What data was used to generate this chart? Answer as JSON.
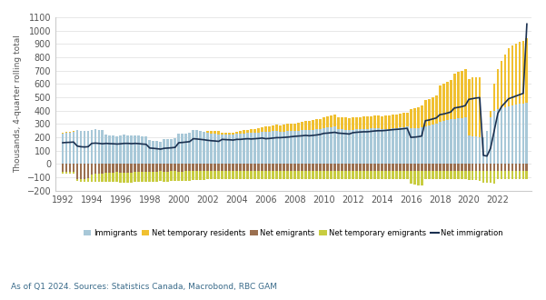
{
  "ylabel": "Thousands, 4-quarter rolling total",
  "ylim": [
    -200,
    1100
  ],
  "yticks": [
    -200,
    -100,
    0,
    100,
    200,
    300,
    400,
    500,
    600,
    700,
    800,
    900,
    1000,
    1100
  ],
  "source_text": "As of Q1 2024. Sources: Statistics Canada, Macrobond, RBC GAM",
  "colors": {
    "immigrants": "#a8c8d8",
    "net_temp_residents": "#f0c030",
    "net_emigrants": "#9b7050",
    "net_temp_emigrants": "#c8cc40",
    "net_immigration": "#1a3050"
  },
  "xtick_years": [
    1992,
    1994,
    1996,
    1998,
    2000,
    2002,
    2004,
    2006,
    2008,
    2010,
    2012,
    2014,
    2016,
    2018,
    2020,
    2022
  ],
  "quarters": [
    1992.0,
    1992.25,
    1992.5,
    1992.75,
    1993.0,
    1993.25,
    1993.5,
    1993.75,
    1994.0,
    1994.25,
    1994.5,
    1994.75,
    1995.0,
    1995.25,
    1995.5,
    1995.75,
    1996.0,
    1996.25,
    1996.5,
    1996.75,
    1997.0,
    1997.25,
    1997.5,
    1997.75,
    1998.0,
    1998.25,
    1998.5,
    1998.75,
    1999.0,
    1999.25,
    1999.5,
    1999.75,
    2000.0,
    2000.25,
    2000.5,
    2000.75,
    2001.0,
    2001.25,
    2001.5,
    2001.75,
    2002.0,
    2002.25,
    2002.5,
    2002.75,
    2003.0,
    2003.25,
    2003.5,
    2003.75,
    2004.0,
    2004.25,
    2004.5,
    2004.75,
    2005.0,
    2005.25,
    2005.5,
    2005.75,
    2006.0,
    2006.25,
    2006.5,
    2006.75,
    2007.0,
    2007.25,
    2007.5,
    2007.75,
    2008.0,
    2008.25,
    2008.5,
    2008.75,
    2009.0,
    2009.25,
    2009.5,
    2009.75,
    2010.0,
    2010.25,
    2010.5,
    2010.75,
    2011.0,
    2011.25,
    2011.5,
    2011.75,
    2012.0,
    2012.25,
    2012.5,
    2012.75,
    2013.0,
    2013.25,
    2013.5,
    2013.75,
    2014.0,
    2014.25,
    2014.5,
    2014.75,
    2015.0,
    2015.25,
    2015.5,
    2015.75,
    2016.0,
    2016.25,
    2016.5,
    2016.75,
    2017.0,
    2017.25,
    2017.5,
    2017.75,
    2018.0,
    2018.25,
    2018.5,
    2018.75,
    2019.0,
    2019.25,
    2019.5,
    2019.75,
    2020.0,
    2020.25,
    2020.5,
    2020.75,
    2021.0,
    2021.25,
    2021.5,
    2021.75,
    2022.0,
    2022.25,
    2022.5,
    2022.75,
    2023.0,
    2023.25,
    2023.5,
    2023.75,
    2024.0
  ],
  "immigrants": [
    230,
    235,
    238,
    242,
    255,
    250,
    248,
    250,
    258,
    260,
    258,
    252,
    218,
    215,
    212,
    210,
    215,
    218,
    215,
    212,
    215,
    212,
    210,
    208,
    178,
    175,
    172,
    168,
    185,
    188,
    190,
    192,
    225,
    228,
    230,
    235,
    255,
    252,
    248,
    245,
    232,
    228,
    225,
    222,
    220,
    218,
    220,
    222,
    225,
    228,
    230,
    232,
    232,
    235,
    238,
    240,
    242,
    245,
    248,
    250,
    242,
    245,
    248,
    250,
    248,
    250,
    252,
    255,
    255,
    258,
    260,
    262,
    272,
    275,
    278,
    280,
    262,
    260,
    258,
    255,
    258,
    260,
    262,
    265,
    265,
    268,
    270,
    272,
    265,
    265,
    265,
    268,
    272,
    275,
    278,
    280,
    268,
    270,
    272,
    275,
    285,
    290,
    295,
    300,
    318,
    322,
    328,
    335,
    338,
    342,
    345,
    348,
    215,
    210,
    205,
    200,
    200,
    250,
    350,
    400,
    410,
    420,
    428,
    435,
    440,
    445,
    450,
    455,
    460
  ],
  "net_temp_residents": [
    5,
    5,
    5,
    5,
    0,
    0,
    0,
    0,
    0,
    0,
    0,
    0,
    0,
    0,
    0,
    0,
    0,
    0,
    0,
    0,
    0,
    0,
    0,
    0,
    0,
    0,
    0,
    0,
    0,
    0,
    0,
    0,
    0,
    0,
    0,
    0,
    0,
    0,
    0,
    0,
    18,
    20,
    22,
    25,
    18,
    15,
    15,
    15,
    18,
    20,
    22,
    25,
    28,
    30,
    32,
    35,
    38,
    40,
    42,
    45,
    48,
    50,
    52,
    55,
    58,
    62,
    65,
    68,
    70,
    72,
    75,
    78,
    80,
    82,
    85,
    88,
    88,
    90,
    90,
    92,
    90,
    90,
    90,
    92,
    90,
    92,
    92,
    95,
    95,
    98,
    100,
    102,
    100,
    102,
    105,
    108,
    145,
    150,
    155,
    162,
    195,
    200,
    208,
    215,
    270,
    278,
    285,
    295,
    340,
    348,
    355,
    365,
    420,
    438,
    445,
    450,
    0,
    0,
    50,
    200,
    300,
    350,
    390,
    430,
    450,
    460,
    465,
    470,
    480
  ],
  "net_emigrants": [
    -55,
    -55,
    -55,
    -55,
    -110,
    -112,
    -110,
    -108,
    -78,
    -75,
    -72,
    -70,
    -65,
    -63,
    -62,
    -60,
    -62,
    -63,
    -65,
    -65,
    -60,
    -60,
    -60,
    -58,
    -55,
    -55,
    -55,
    -53,
    -55,
    -55,
    -53,
    -52,
    -55,
    -55,
    -53,
    -52,
    -50,
    -50,
    -50,
    -50,
    -50,
    -50,
    -50,
    -50,
    -50,
    -50,
    -50,
    -50,
    -50,
    -50,
    -50,
    -50,
    -50,
    -50,
    -50,
    -50,
    -50,
    -50,
    -50,
    -50,
    -50,
    -50,
    -50,
    -50,
    -50,
    -50,
    -50,
    -50,
    -50,
    -50,
    -50,
    -50,
    -50,
    -50,
    -50,
    -50,
    -50,
    -50,
    -50,
    -50,
    -50,
    -50,
    -50,
    -50,
    -50,
    -50,
    -50,
    -50,
    -50,
    -50,
    -50,
    -50,
    -50,
    -50,
    -50,
    -50,
    -50,
    -50,
    -50,
    -50,
    -50,
    -50,
    -50,
    -50,
    -50,
    -50,
    -50,
    -50,
    -50,
    -50,
    -50,
    -50,
    -50,
    -50,
    -50,
    -50,
    -50,
    -50,
    -50,
    -50,
    -50,
    -50,
    -50,
    -50,
    -50,
    -50,
    -50,
    -50,
    -50
  ],
  "net_temp_emigrants": [
    -15,
    -15,
    -16,
    -18,
    -15,
    -18,
    -20,
    -22,
    -58,
    -60,
    -62,
    -65,
    -68,
    -70,
    -72,
    -72,
    -75,
    -75,
    -75,
    -75,
    -75,
    -75,
    -75,
    -75,
    -75,
    -75,
    -75,
    -75,
    -75,
    -75,
    -75,
    -75,
    -72,
    -72,
    -72,
    -72,
    -70,
    -70,
    -70,
    -68,
    -65,
    -65,
    -65,
    -65,
    -65,
    -65,
    -65,
    -65,
    -65,
    -65,
    -65,
    -65,
    -65,
    -65,
    -65,
    -65,
    -65,
    -65,
    -65,
    -65,
    -65,
    -65,
    -65,
    -65,
    -65,
    -65,
    -65,
    -65,
    -65,
    -65,
    -65,
    -65,
    -65,
    -65,
    -65,
    -65,
    -65,
    -65,
    -65,
    -65,
    -65,
    -65,
    -65,
    -65,
    -65,
    -65,
    -65,
    -65,
    -65,
    -65,
    -65,
    -65,
    -65,
    -65,
    -65,
    -65,
    -100,
    -105,
    -108,
    -110,
    -65,
    -65,
    -65,
    -65,
    -65,
    -65,
    -65,
    -65,
    -65,
    -65,
    -65,
    -65,
    -68,
    -70,
    -72,
    -75,
    -88,
    -90,
    -92,
    -95,
    -65,
    -65,
    -65,
    -65,
    -65,
    -65,
    -65,
    -65,
    -65
  ],
  "net_immigration": [
    160,
    162,
    163,
    165,
    135,
    130,
    128,
    130,
    155,
    157,
    155,
    152,
    155,
    153,
    152,
    150,
    152,
    155,
    155,
    153,
    155,
    153,
    150,
    148,
    120,
    118,
    115,
    112,
    118,
    120,
    122,
    125,
    160,
    162,
    165,
    168,
    190,
    188,
    185,
    182,
    178,
    175,
    173,
    170,
    185,
    183,
    182,
    180,
    185,
    185,
    188,
    190,
    188,
    190,
    192,
    195,
    190,
    192,
    195,
    198,
    198,
    200,
    202,
    205,
    208,
    210,
    212,
    215,
    212,
    215,
    218,
    222,
    230,
    232,
    235,
    238,
    232,
    230,
    228,
    225,
    235,
    238,
    240,
    242,
    242,
    245,
    248,
    250,
    250,
    252,
    255,
    258,
    260,
    262,
    265,
    268,
    200,
    202,
    205,
    210,
    325,
    330,
    338,
    345,
    370,
    375,
    382,
    390,
    420,
    425,
    430,
    438,
    485,
    490,
    495,
    498,
    65,
    60,
    120,
    250,
    380,
    430,
    460,
    490,
    500,
    510,
    520,
    530,
    1050
  ]
}
